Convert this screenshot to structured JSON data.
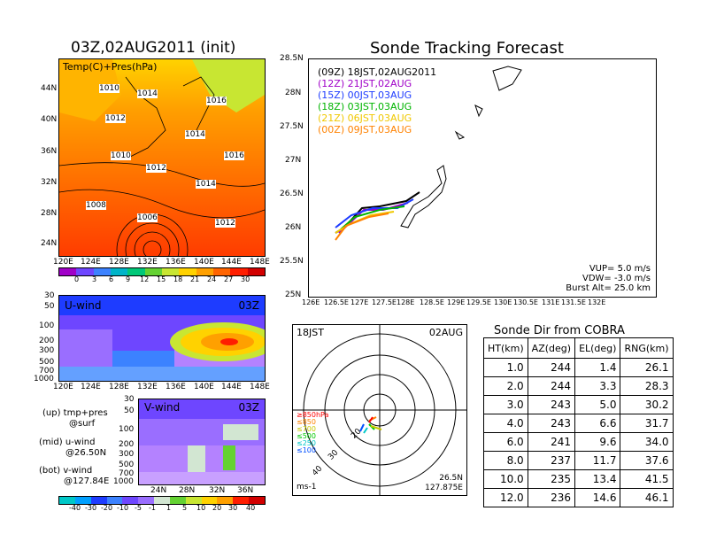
{
  "map_panel": {
    "title": "03Z,02AUG2011 (init)",
    "label": "Temp(C)+Pres(hPa)",
    "lat_ticks": [
      "44N",
      "40N",
      "36N",
      "32N",
      "28N",
      "24N"
    ],
    "lon_ticks": [
      "120E",
      "124E",
      "128E",
      "132E",
      "136E",
      "140E",
      "144E",
      "148E"
    ],
    "isobar_labels": [
      "1010",
      "1014",
      "1016",
      "1012",
      "1014",
      "1010",
      "1012",
      "1016",
      "1014",
      "1008",
      "1006",
      "1012"
    ],
    "colorbar": [
      "0",
      "3",
      "6",
      "9",
      "12",
      "15",
      "18",
      "21",
      "24",
      "27",
      "30"
    ]
  },
  "u_panel": {
    "label": "U-wind",
    "time": "03Z",
    "pres_ticks": [
      "30",
      "50",
      "100",
      "200",
      "300",
      "500",
      "700",
      "1000"
    ],
    "lon_ticks": [
      "120E",
      "124E",
      "128E",
      "132E",
      "136E",
      "140E",
      "144E",
      "148E"
    ]
  },
  "v_panel": {
    "label": "V-wind",
    "time": "03Z",
    "pres_ticks": [
      "30",
      "50",
      "100",
      "200",
      "300",
      "500",
      "700",
      "1000"
    ],
    "lat_ticks": [
      "24N",
      "28N",
      "32N",
      "36N"
    ]
  },
  "notes": {
    "up": "(up) tmp+pres",
    "up2": "@surf",
    "mid": "(mid) u-wind",
    "mid2": "@26.50N",
    "bot": "(bot) v-wind",
    "bot2": "@127.84E"
  },
  "wind_colorbar": [
    "-40",
    "-30",
    "-20",
    "-10",
    "-5",
    "-1",
    "1",
    "5",
    "10",
    "20",
    "30",
    "40"
  ],
  "track_panel": {
    "title": "Sonde Tracking Forecast",
    "lat_ticks": [
      "28.5N",
      "28N",
      "27.5N",
      "27N",
      "26.5N",
      "26N",
      "25.5N",
      "25N"
    ],
    "lon_ticks": [
      "126E",
      "126.5E",
      "127E",
      "127.5E",
      "128E",
      "128.5E",
      "129E",
      "129.5E",
      "130E",
      "130.5E",
      "131E",
      "131.5E",
      "132E"
    ],
    "legend": [
      {
        "text": "(09Z)  18JST,02AUG2011",
        "color": "#000000"
      },
      {
        "text": "(12Z)  21JST,02AUG",
        "color": "#a000c8"
      },
      {
        "text": "(15Z)  00JST,03AUG",
        "color": "#1e3cff"
      },
      {
        "text": "(18Z)  03JST,03AUG",
        "color": "#00b400"
      },
      {
        "text": "(21Z)  06JST,03AUG",
        "color": "#f0c800"
      },
      {
        "text": "(00Z)  09JST,03AUG",
        "color": "#ff8200"
      }
    ],
    "params": [
      "VUP=  5.0  m/s",
      "VDW= -3.0  m/s",
      "Burst Alt=  25.0  km"
    ]
  },
  "polar_panel": {
    "time": "18JST",
    "date": "02AUG",
    "levels": [
      "≥850hPa",
      "≤850",
      "≤700",
      "≤500",
      "≤250",
      "≤100"
    ],
    "level_colors": [
      "#ff0000",
      "#ff8200",
      "#c8c800",
      "#00c800",
      "#00c8c8",
      "#0050ff"
    ],
    "ring_labels": [
      "20",
      "30",
      "40"
    ],
    "loc1": "26.5N",
    "loc2": "127.875E",
    "unit": "ms-1"
  },
  "sonde_table": {
    "title": "Sonde Dir from COBRA",
    "headers": [
      "HT(km)",
      "AZ(deg)",
      "EL(deg)",
      "RNG(km)"
    ],
    "rows": [
      [
        "1.0",
        "244",
        "1.4",
        "26.1"
      ],
      [
        "2.0",
        "244",
        "3.3",
        "28.3"
      ],
      [
        "3.0",
        "243",
        "5.0",
        "30.2"
      ],
      [
        "4.0",
        "243",
        "6.6",
        "31.7"
      ],
      [
        "6.0",
        "241",
        "9.6",
        "34.0"
      ],
      [
        "8.0",
        "237",
        "11.7",
        "37.6"
      ],
      [
        "10.0",
        "235",
        "13.4",
        "41.5"
      ],
      [
        "12.0",
        "236",
        "14.6",
        "46.1"
      ]
    ]
  }
}
